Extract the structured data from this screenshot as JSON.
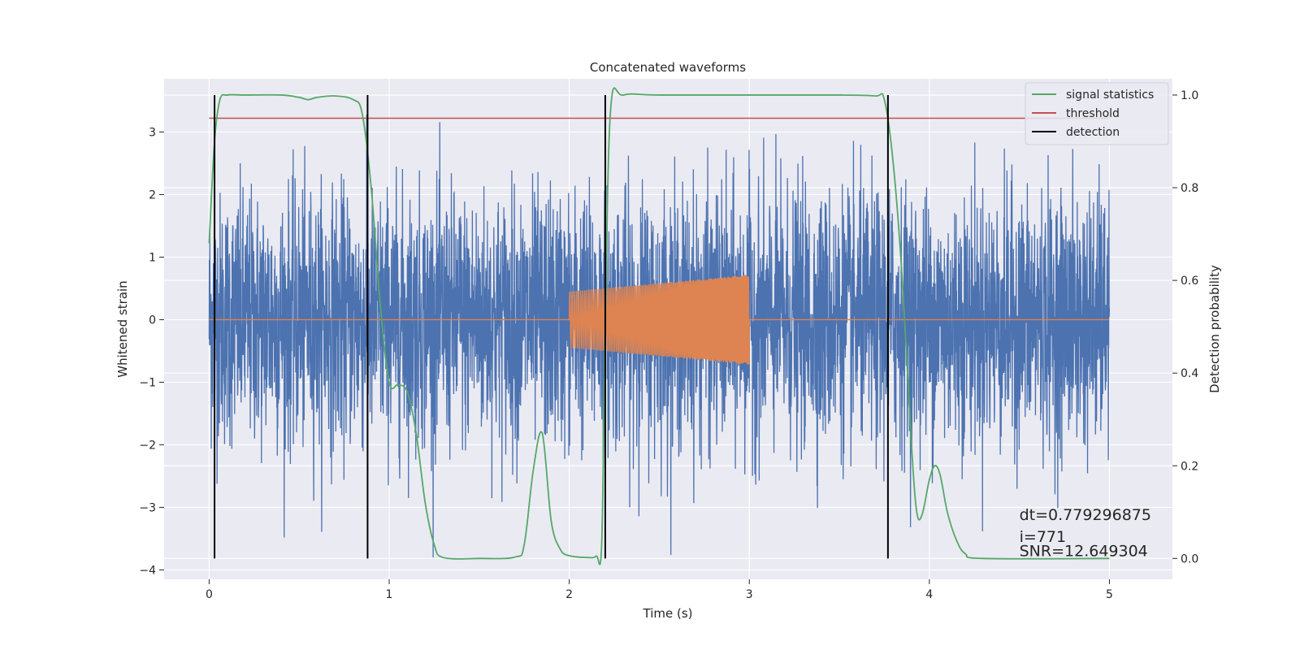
{
  "chart_data": {
    "type": "line",
    "title": "Concatenated waveforms",
    "xlabel": "Time (s)",
    "ylabel": "Whitened strain",
    "ylabel_right": "Detection probability",
    "xlim": [
      -0.25,
      5.35
    ],
    "ylim": [
      -4.15,
      3.85
    ],
    "ylim_right": [
      -0.045,
      1.035
    ],
    "xticks": [
      0,
      1,
      2,
      3,
      4,
      5
    ],
    "yticks": [
      -4,
      -3,
      -2,
      -1,
      0,
      1,
      2,
      3
    ],
    "yticks_right": [
      0.0,
      0.2,
      0.4,
      0.6,
      0.8,
      1.0
    ],
    "grid": true,
    "legend_position": "top-right",
    "series": [
      {
        "name": "",
        "key": "noisy_strain",
        "axis": "left",
        "color": "#4c72b0",
        "x_range": [
          0,
          5
        ],
        "noise_std": 1.0,
        "max_abs": 3.5,
        "description_values": "dense whitened noise"
      },
      {
        "name": "",
        "key": "clean_waveform",
        "axis": "left",
        "color": "#dd8452",
        "x_range": [
          0,
          5
        ],
        "chirp_start": 2.0,
        "chirp_end": 3.0,
        "amp_start": 0.45,
        "amp_end": 0.72
      },
      {
        "name": "signal statistics",
        "key": "signal_statistics",
        "axis": "right",
        "color": "#55a868",
        "x": [
          0.0,
          0.03,
          0.06,
          0.1,
          0.2,
          0.4,
          0.5,
          0.55,
          0.6,
          0.7,
          0.8,
          0.85,
          0.9,
          0.95,
          1.0,
          1.05,
          1.1,
          1.15,
          1.2,
          1.25,
          1.3,
          1.5,
          1.7,
          1.75,
          1.8,
          1.85,
          1.9,
          1.95,
          2.0,
          2.1,
          2.15,
          2.18,
          2.2,
          2.23,
          2.3,
          2.5,
          3.0,
          3.5,
          3.7,
          3.75,
          3.8,
          3.85,
          3.9,
          3.93,
          3.96,
          4.0,
          4.03,
          4.06,
          4.1,
          4.15,
          4.2,
          4.3,
          5.0
        ],
        "y": [
          0.68,
          0.9,
          0.99,
          1.0,
          1.0,
          1.0,
          0.995,
          0.99,
          0.995,
          0.998,
          0.99,
          0.96,
          0.8,
          0.55,
          0.38,
          0.375,
          0.36,
          0.27,
          0.12,
          0.03,
          0.002,
          0.0,
          0.003,
          0.03,
          0.19,
          0.27,
          0.08,
          0.02,
          0.006,
          0.002,
          0.005,
          0.03,
          0.5,
          0.97,
          1.0,
          1.0,
          1.0,
          1.0,
          0.998,
          0.99,
          0.85,
          0.6,
          0.25,
          0.1,
          0.095,
          0.17,
          0.2,
          0.18,
          0.1,
          0.04,
          0.01,
          0.0,
          0.0
        ]
      },
      {
        "name": "threshold",
        "key": "threshold",
        "axis": "right",
        "color": "#c44e52",
        "x": [
          0,
          5
        ],
        "y": [
          0.95,
          0.95
        ]
      },
      {
        "name": "detection",
        "key": "detection",
        "axis": "right",
        "color": "#000000",
        "x": [
          0.03,
          0.88,
          2.2,
          3.77
        ],
        "ymin": 0.0,
        "ymax": 1.0
      }
    ],
    "annotations": [
      {
        "text": "dt=0.779296875",
        "x": 4.5,
        "y": -3.2
      },
      {
        "text": " i=771",
        "x": 4.5,
        "y": -3.55
      },
      {
        "text": "SNR=12.649304",
        "x": 4.5,
        "y": -3.78
      }
    ]
  }
}
